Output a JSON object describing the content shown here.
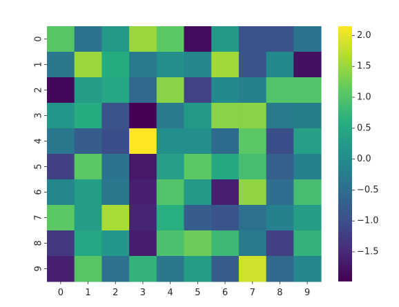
{
  "chart_data": {
    "type": "heatmap",
    "title": "",
    "xlabel": "",
    "ylabel": "",
    "x_categories": [
      "0",
      "1",
      "2",
      "3",
      "4",
      "5",
      "6",
      "7",
      "8",
      "9"
    ],
    "y_categories": [
      "0",
      "1",
      "2",
      "3",
      "4",
      "5",
      "6",
      "7",
      "8",
      "9"
    ],
    "colormap": "viridis",
    "color_range": [
      -1.98,
      2.15
    ],
    "colorbar_ticks": [
      -1.5,
      -1.0,
      -0.5,
      0.0,
      0.5,
      1.0,
      1.5,
      2.0
    ],
    "colorbar_tick_labels": [
      "−1.5",
      "−1.0",
      "−0.5",
      "0.0",
      "0.5",
      "1.0",
      "1.5",
      "2.0"
    ],
    "values": [
      [
        1.05,
        -0.4,
        0.25,
        1.5,
        1.1,
        -1.85,
        0.25,
        -0.95,
        -0.95,
        -0.4
      ],
      [
        -0.35,
        1.5,
        0.55,
        -0.3,
        0.05,
        -0.1,
        1.55,
        -0.9,
        -0.05,
        -1.8
      ],
      [
        -1.9,
        0.3,
        0.45,
        -0.6,
        1.4,
        -1.15,
        -0.05,
        -0.2,
        1.0,
        1.0
      ],
      [
        0.2,
        0.55,
        -0.95,
        -1.98,
        -0.3,
        0.25,
        1.4,
        1.4,
        -0.3,
        -0.25
      ],
      [
        -0.35,
        -0.75,
        -1.0,
        2.15,
        0.05,
        0.05,
        -0.55,
        1.1,
        -1.0,
        0.35
      ],
      [
        -1.2,
        1.1,
        -0.4,
        -1.7,
        0.35,
        1.1,
        0.5,
        0.9,
        -0.7,
        -0.2
      ],
      [
        -0.1,
        0.3,
        -0.35,
        -1.6,
        1.0,
        0.25,
        -1.6,
        1.45,
        -0.5,
        0.9
      ],
      [
        1.1,
        0.3,
        1.6,
        -1.55,
        0.6,
        -0.75,
        -0.9,
        -0.45,
        -0.2,
        0.3
      ],
      [
        -1.3,
        0.45,
        0.2,
        -1.65,
        0.95,
        1.2,
        0.8,
        -0.3,
        -1.2,
        0.7
      ],
      [
        -1.6,
        1.05,
        -0.45,
        0.7,
        -0.35,
        0.3,
        -0.75,
        1.85,
        -0.6,
        -0.1
      ]
    ]
  }
}
